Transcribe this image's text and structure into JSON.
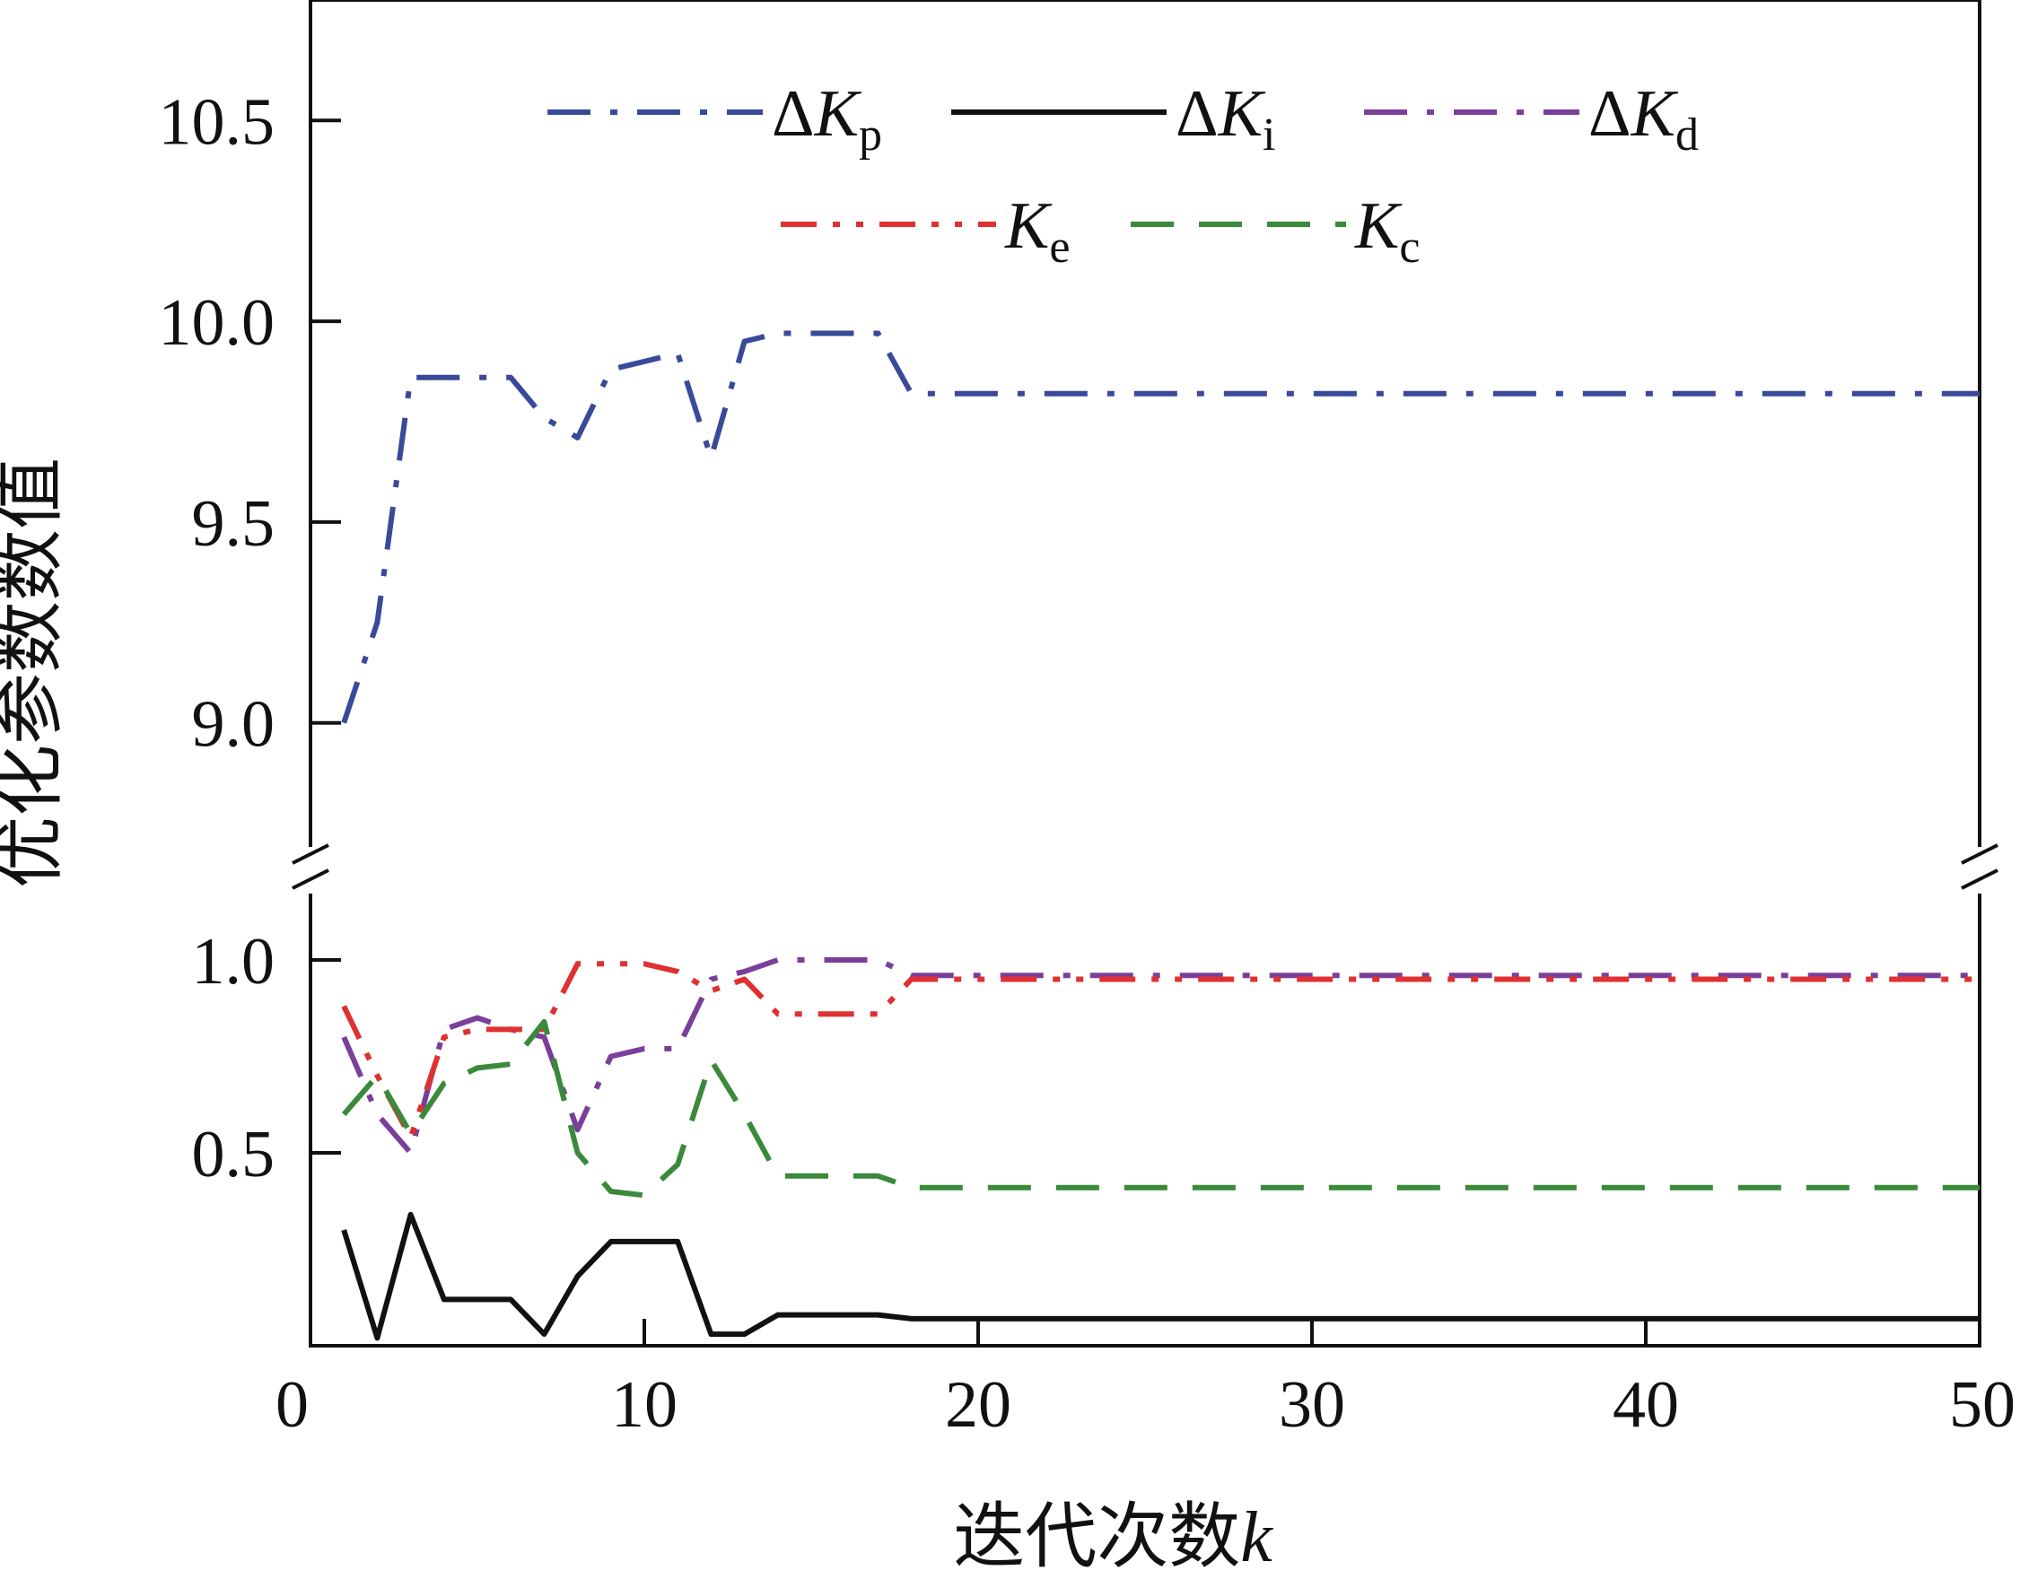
{
  "chart_data": {
    "type": "line",
    "xlabel": {
      "main": "迭代次数",
      "var": "k"
    },
    "ylabel": "优化参数数值",
    "xlim": [
      0,
      50
    ],
    "x_ticks": [
      "0",
      "10",
      "20",
      "30",
      "40",
      "50"
    ],
    "y_axis_broken": true,
    "y_lower_range": [
      0,
      1.0
    ],
    "y_upper_range": [
      8.7,
      10.8
    ],
    "y_ticks_lower": [
      "0.5",
      "1.0"
    ],
    "y_ticks_upper": [
      "9.0",
      "9.5",
      "10.0",
      "10.5"
    ],
    "x": [
      1,
      2,
      3,
      4,
      5,
      6,
      7,
      8,
      9,
      10,
      11,
      12,
      13,
      14,
      15,
      16,
      17,
      18,
      19,
      20,
      21,
      22,
      23,
      24,
      25,
      26,
      27,
      28,
      29,
      30,
      31,
      32,
      33,
      34,
      35,
      36,
      37,
      38,
      39,
      40,
      41,
      42,
      43,
      44,
      45,
      46,
      47,
      48,
      49,
      50
    ],
    "legend_position": "top",
    "series": [
      {
        "key": "dKp",
        "name_prefix": "ΔK",
        "name_sub": "p",
        "color": "#3a4a9a",
        "dash": "dashdot",
        "panel": "upper",
        "values": [
          9.0,
          9.25,
          9.86,
          9.86,
          9.86,
          9.86,
          9.76,
          9.71,
          9.88,
          9.9,
          9.92,
          9.66,
          9.95,
          9.97,
          9.97,
          9.97,
          9.97,
          9.82,
          9.82,
          9.82,
          9.82,
          9.82,
          9.82,
          9.82,
          9.82,
          9.82,
          9.82,
          9.82,
          9.82,
          9.82,
          9.82,
          9.82,
          9.82,
          9.82,
          9.82,
          9.82,
          9.82,
          9.82,
          9.82,
          9.82,
          9.82,
          9.82,
          9.82,
          9.82,
          9.82,
          9.82,
          9.82,
          9.82,
          9.82,
          9.82
        ]
      },
      {
        "key": "dKi",
        "name_prefix": "ΔK",
        "name_sub": "i",
        "color": "#111111",
        "dash": "solid",
        "panel": "lower",
        "values": [
          0.3,
          0.02,
          0.34,
          0.12,
          0.12,
          0.12,
          0.03,
          0.18,
          0.27,
          0.27,
          0.27,
          0.03,
          0.03,
          0.08,
          0.08,
          0.08,
          0.08,
          0.07,
          0.07,
          0.07,
          0.07,
          0.07,
          0.07,
          0.07,
          0.07,
          0.07,
          0.07,
          0.07,
          0.07,
          0.07,
          0.07,
          0.07,
          0.07,
          0.07,
          0.07,
          0.07,
          0.07,
          0.07,
          0.07,
          0.07,
          0.07,
          0.07,
          0.07,
          0.07,
          0.07,
          0.07,
          0.07,
          0.07,
          0.07,
          0.07
        ]
      },
      {
        "key": "dKd",
        "name_prefix": "ΔK",
        "name_sub": "d",
        "color": "#7a3f9a",
        "dash": "dashdot",
        "panel": "lower",
        "values": [
          0.8,
          0.6,
          0.5,
          0.82,
          0.85,
          0.82,
          0.8,
          0.56,
          0.75,
          0.77,
          0.77,
          0.95,
          0.97,
          1.0,
          1.0,
          1.0,
          1.0,
          0.96,
          0.96,
          0.96,
          0.96,
          0.96,
          0.96,
          0.96,
          0.96,
          0.96,
          0.96,
          0.96,
          0.96,
          0.96,
          0.96,
          0.96,
          0.96,
          0.96,
          0.96,
          0.96,
          0.96,
          0.96,
          0.96,
          0.96,
          0.96,
          0.96,
          0.96,
          0.96,
          0.96,
          0.96,
          0.96,
          0.96,
          0.96,
          0.96
        ]
      },
      {
        "key": "Ke",
        "name_prefix": "K",
        "name_sub": "e",
        "color": "#e03030",
        "dash": "dashdotdot",
        "panel": "lower",
        "values": [
          0.88,
          0.7,
          0.54,
          0.8,
          0.82,
          0.82,
          0.82,
          0.99,
          0.99,
          0.99,
          0.97,
          0.92,
          0.95,
          0.86,
          0.86,
          0.86,
          0.86,
          0.95,
          0.95,
          0.95,
          0.95,
          0.95,
          0.95,
          0.95,
          0.95,
          0.95,
          0.95,
          0.95,
          0.95,
          0.95,
          0.95,
          0.95,
          0.95,
          0.95,
          0.95,
          0.95,
          0.95,
          0.95,
          0.95,
          0.95,
          0.95,
          0.95,
          0.95,
          0.95,
          0.95,
          0.95,
          0.95,
          0.95,
          0.95,
          0.95
        ]
      },
      {
        "key": "Kc",
        "name_prefix": "K",
        "name_sub": "c",
        "color": "#3a8a3a",
        "dash": "dashed",
        "panel": "lower",
        "values": [
          0.6,
          0.7,
          0.55,
          0.68,
          0.72,
          0.73,
          0.84,
          0.5,
          0.4,
          0.39,
          0.47,
          0.74,
          0.6,
          0.44,
          0.44,
          0.44,
          0.44,
          0.41,
          0.41,
          0.41,
          0.41,
          0.41,
          0.41,
          0.41,
          0.41,
          0.41,
          0.41,
          0.41,
          0.41,
          0.41,
          0.41,
          0.41,
          0.41,
          0.41,
          0.41,
          0.41,
          0.41,
          0.41,
          0.41,
          0.41,
          0.41,
          0.41,
          0.41,
          0.41,
          0.41,
          0.41,
          0.41,
          0.41,
          0.41,
          0.41
        ]
      }
    ]
  }
}
